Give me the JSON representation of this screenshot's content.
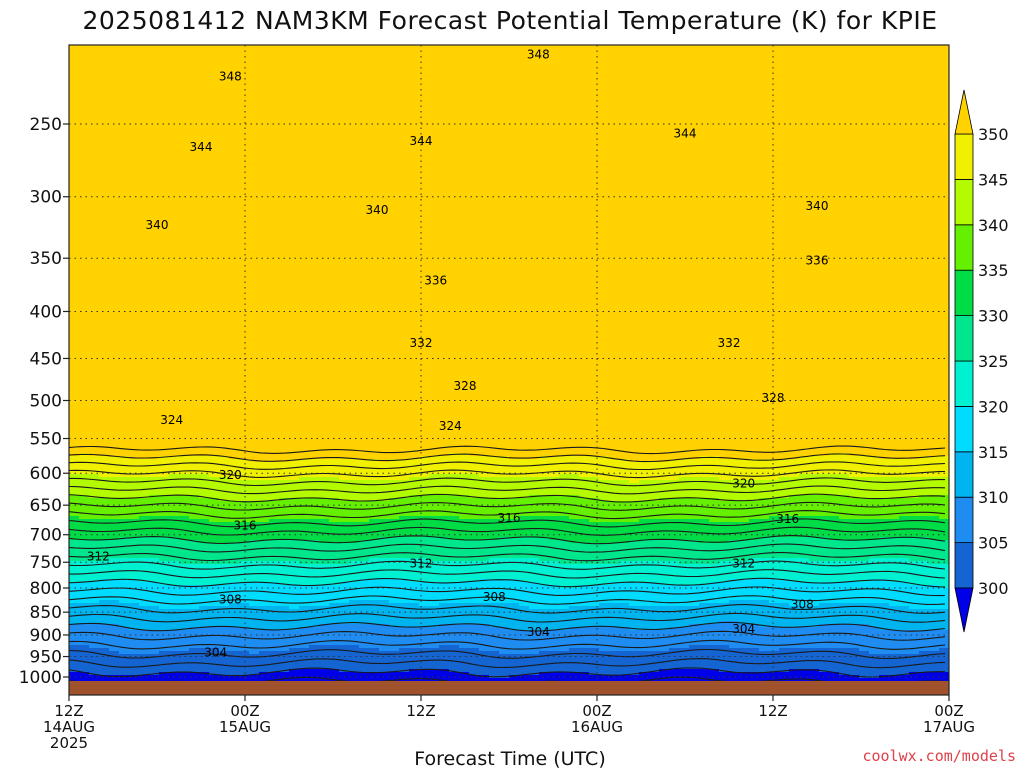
{
  "chart_data": {
    "type": "contour",
    "title": "2025081412 NAM3KM Forecast Potential Temperature (K) for KPIE",
    "xlabel": "Forecast Time (UTC)",
    "ylabel": "",
    "y_scale": "log",
    "y_inverted": true,
    "ylim": [
      1000,
      200
    ],
    "y_ticks": [
      250,
      300,
      350,
      400,
      450,
      500,
      550,
      600,
      650,
      700,
      750,
      800,
      850,
      900,
      950,
      1000
    ],
    "x_start": "2025-08-14T12:00Z",
    "x_end": "2025-08-17T00:00Z",
    "x_ticks": [
      {
        "time": "2025-08-14T12:00Z",
        "lines": [
          "12Z",
          "14AUG",
          "2025"
        ]
      },
      {
        "time": "2025-08-15T00:00Z",
        "lines": [
          "00Z",
          "15AUG"
        ]
      },
      {
        "time": "2025-08-15T12:00Z",
        "lines": [
          "12Z"
        ]
      },
      {
        "time": "2025-08-16T00:00Z",
        "lines": [
          "00Z",
          "16AUG"
        ]
      },
      {
        "time": "2025-08-16T12:00Z",
        "lines": [
          "12Z"
        ]
      },
      {
        "time": "2025-08-17T00:00Z",
        "lines": [
          "00Z",
          "17AUG"
        ]
      }
    ],
    "grid": true,
    "colorbar": {
      "placement": "right",
      "unit": "K",
      "ticks": [
        300,
        305,
        310,
        315,
        320,
        325,
        330,
        335,
        340,
        345,
        350
      ],
      "colors": [
        "#0000e8",
        "#1464d2",
        "#1e8cf0",
        "#00b4f0",
        "#00dcff",
        "#00f0d2",
        "#00e68c",
        "#00dc46",
        "#64f000",
        "#b4fa00",
        "#f0f000",
        "#ffd200"
      ]
    },
    "contour_interval": 2,
    "labeled_contours": [
      {
        "value": 348,
        "labels": [
          {
            "time": "2025-08-14T23:00Z",
            "p": 222
          },
          {
            "time": "2025-08-15T20:00Z",
            "p": 210
          }
        ]
      },
      {
        "value": 344,
        "labels": [
          {
            "time": "2025-08-14T21:00Z",
            "p": 265
          },
          {
            "time": "2025-08-15T12:00Z",
            "p": 261
          },
          {
            "time": "2025-08-16T06:00Z",
            "p": 256
          }
        ]
      },
      {
        "value": 340,
        "labels": [
          {
            "time": "2025-08-14T18:00Z",
            "p": 322
          },
          {
            "time": "2025-08-15T09:00Z",
            "p": 310
          },
          {
            "time": "2025-08-16T15:00Z",
            "p": 307
          }
        ]
      },
      {
        "value": 336,
        "labels": [
          {
            "time": "2025-08-15T13:00Z",
            "p": 370
          },
          {
            "time": "2025-08-16T15:00Z",
            "p": 352
          }
        ]
      },
      {
        "value": 332,
        "labels": [
          {
            "time": "2025-08-15T12:00Z",
            "p": 433
          },
          {
            "time": "2025-08-16T09:00Z",
            "p": 433
          }
        ]
      },
      {
        "value": 328,
        "labels": [
          {
            "time": "2025-08-15T15:00Z",
            "p": 482
          },
          {
            "time": "2025-08-16T12:00Z",
            "p": 497
          }
        ]
      },
      {
        "value": 324,
        "labels": [
          {
            "time": "2025-08-14T19:00Z",
            "p": 525
          },
          {
            "time": "2025-08-15T14:00Z",
            "p": 533
          }
        ]
      },
      {
        "value": 320,
        "labels": [
          {
            "time": "2025-08-14T23:00Z",
            "p": 603
          },
          {
            "time": "2025-08-16T10:00Z",
            "p": 616
          }
        ]
      },
      {
        "value": 316,
        "labels": [
          {
            "time": "2025-08-15T00:00Z",
            "p": 684
          },
          {
            "time": "2025-08-15T18:00Z",
            "p": 671
          },
          {
            "time": "2025-08-16T13:00Z",
            "p": 673
          }
        ]
      },
      {
        "value": 312,
        "labels": [
          {
            "time": "2025-08-14T14:00Z",
            "p": 739
          },
          {
            "time": "2025-08-15T12:00Z",
            "p": 752
          },
          {
            "time": "2025-08-16T10:00Z",
            "p": 752
          }
        ]
      },
      {
        "value": 308,
        "labels": [
          {
            "time": "2025-08-14T23:00Z",
            "p": 823
          },
          {
            "time": "2025-08-15T17:00Z",
            "p": 818
          },
          {
            "time": "2025-08-16T14:00Z",
            "p": 834
          }
        ]
      },
      {
        "value": 304,
        "labels": [
          {
            "time": "2025-08-14T22:00Z",
            "p": 941
          },
          {
            "time": "2025-08-15T20:00Z",
            "p": 893
          },
          {
            "time": "2025-08-16T10:00Z",
            "p": 887
          }
        ]
      }
    ]
  },
  "credit": "coolwx.com/models"
}
